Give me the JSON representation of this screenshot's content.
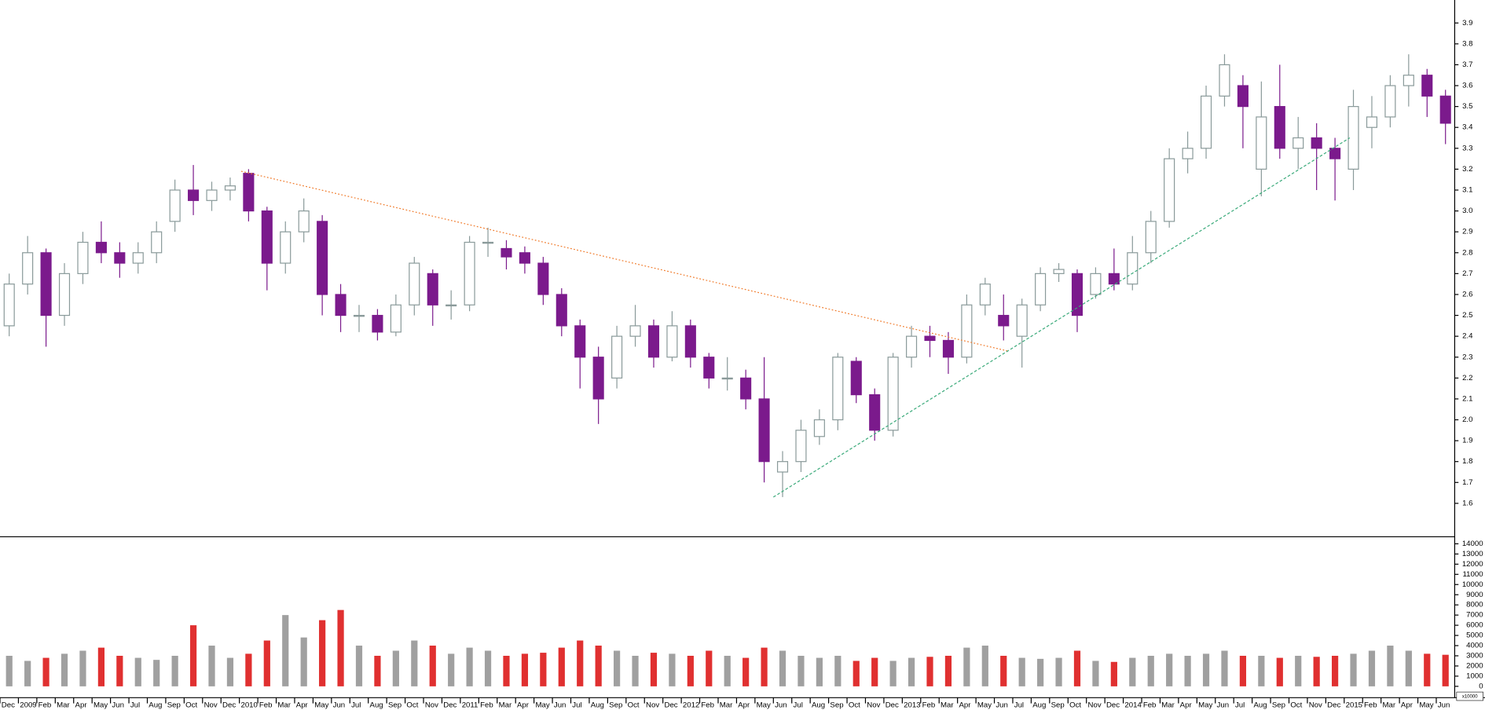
{
  "chart_data": [
    {
      "type": "candlestick",
      "categories": [
        "Dec",
        "2009",
        "Feb",
        "Mar",
        "Apr",
        "May",
        "Jun",
        "Jul",
        "Aug",
        "Sep",
        "Oct",
        "Nov",
        "Dec",
        "2010",
        "Feb",
        "Mar",
        "Apr",
        "May",
        "Jun",
        "Jul",
        "Aug",
        "Sep",
        "Oct",
        "Nov",
        "Dec",
        "2011",
        "Feb",
        "Mar",
        "Apr",
        "May",
        "Jun",
        "Jul",
        "Aug",
        "Sep",
        "Oct",
        "Nov",
        "Dec",
        "2012",
        "Feb",
        "Mar",
        "Apr",
        "May",
        "Jun",
        "Jul",
        "Aug",
        "Sep",
        "Oct",
        "Nov",
        "Dec",
        "2013",
        "Feb",
        "Mar",
        "Apr",
        "May",
        "Jun",
        "Jul",
        "Aug",
        "Sep",
        "Oct",
        "Nov",
        "Dec",
        "2014",
        "Feb",
        "Mar",
        "Apr",
        "May",
        "Jun",
        "Jul",
        "Aug",
        "Sep",
        "Oct",
        "Nov",
        "Dec",
        "2015",
        "Feb",
        "Mar",
        "Apr",
        "May",
        "Jun"
      ],
      "open": [
        2.45,
        2.65,
        2.8,
        2.5,
        2.7,
        2.85,
        2.8,
        2.75,
        2.8,
        2.95,
        3.1,
        3.05,
        3.1,
        3.18,
        3.0,
        2.75,
        2.9,
        2.95,
        2.6,
        2.5,
        2.5,
        2.42,
        2.55,
        2.7,
        2.55,
        2.55,
        2.85,
        2.82,
        2.8,
        2.75,
        2.6,
        2.45,
        2.3,
        2.2,
        2.4,
        2.45,
        2.3,
        2.45,
        2.3,
        2.2,
        2.2,
        2.1,
        1.75,
        1.8,
        1.92,
        2.0,
        2.28,
        2.12,
        1.95,
        2.3,
        2.4,
        2.38,
        2.3,
        2.55,
        2.5,
        2.4,
        2.55,
        2.7,
        2.7,
        2.6,
        2.7,
        2.65,
        2.8,
        2.95,
        3.25,
        3.3,
        3.55,
        3.6,
        3.2,
        3.5,
        3.3,
        3.35,
        3.3,
        3.2,
        3.4,
        3.45,
        3.6,
        3.65,
        3.55
      ],
      "high": [
        2.7,
        2.88,
        2.82,
        2.75,
        2.9,
        2.95,
        2.85,
        2.85,
        2.95,
        3.15,
        3.22,
        3.14,
        3.16,
        3.2,
        3.02,
        2.95,
        3.06,
        2.98,
        2.65,
        2.55,
        2.53,
        2.6,
        2.78,
        2.72,
        2.62,
        2.88,
        2.92,
        2.86,
        2.83,
        2.78,
        2.63,
        2.48,
        2.35,
        2.45,
        2.55,
        2.48,
        2.52,
        2.48,
        2.32,
        2.3,
        2.24,
        2.3,
        1.85,
        2.0,
        2.05,
        2.32,
        2.3,
        2.15,
        2.32,
        2.45,
        2.45,
        2.42,
        2.6,
        2.68,
        2.6,
        2.58,
        2.73,
        2.75,
        2.72,
        2.73,
        2.82,
        2.88,
        3.0,
        3.3,
        3.38,
        3.6,
        3.75,
        3.65,
        3.62,
        3.7,
        3.45,
        3.42,
        3.35,
        3.58,
        3.55,
        3.65,
        3.75,
        3.68,
        3.58
      ],
      "low": [
        2.4,
        2.6,
        2.35,
        2.45,
        2.65,
        2.75,
        2.68,
        2.7,
        2.75,
        2.9,
        2.98,
        3.0,
        3.05,
        2.95,
        2.62,
        2.7,
        2.85,
        2.5,
        2.42,
        2.42,
        2.38,
        2.4,
        2.5,
        2.45,
        2.48,
        2.52,
        2.78,
        2.72,
        2.7,
        2.55,
        2.4,
        2.15,
        1.98,
        2.15,
        2.35,
        2.25,
        2.28,
        2.25,
        2.15,
        2.14,
        2.05,
        1.7,
        1.63,
        1.75,
        1.88,
        1.95,
        2.08,
        1.9,
        1.92,
        2.25,
        2.3,
        2.22,
        2.27,
        2.5,
        2.38,
        2.25,
        2.52,
        2.66,
        2.42,
        2.58,
        2.62,
        2.62,
        2.75,
        2.92,
        3.18,
        3.25,
        3.5,
        3.3,
        3.07,
        3.25,
        3.2,
        3.1,
        3.05,
        3.1,
        3.3,
        3.4,
        3.5,
        3.45,
        3.32
      ],
      "close": [
        2.65,
        2.8,
        2.5,
        2.7,
        2.85,
        2.8,
        2.75,
        2.8,
        2.9,
        3.1,
        3.05,
        3.1,
        3.12,
        3.0,
        2.75,
        2.9,
        3.0,
        2.6,
        2.5,
        2.5,
        2.42,
        2.55,
        2.75,
        2.55,
        2.55,
        2.85,
        2.85,
        2.78,
        2.75,
        2.6,
        2.45,
        2.3,
        2.1,
        2.4,
        2.45,
        2.3,
        2.45,
        2.3,
        2.2,
        2.2,
        2.1,
        1.8,
        1.8,
        1.95,
        2.0,
        2.3,
        2.12,
        1.95,
        2.3,
        2.4,
        2.38,
        2.3,
        2.55,
        2.65,
        2.45,
        2.55,
        2.7,
        2.72,
        2.5,
        2.7,
        2.65,
        2.8,
        2.95,
        3.25,
        3.3,
        3.55,
        3.7,
        3.5,
        3.45,
        3.3,
        3.35,
        3.3,
        3.25,
        3.5,
        3.45,
        3.6,
        3.65,
        3.55,
        3.42
      ],
      "up_color": "#ffffff",
      "up_edge": "#8a9a9a",
      "down_color": "#7b1a8c",
      "ylim": [
        1.44,
        4.01
      ],
      "yticks": [
        1.6,
        1.7,
        1.8,
        1.9,
        {
          "value": 2,
          "label": "2.0"
        },
        2.1,
        2.2,
        2.3,
        2.4,
        2.5,
        2.6,
        2.7,
        2.8,
        2.9,
        {
          "value": 3,
          "label": "3.0"
        },
        3.1,
        3.2,
        3.3,
        3.4,
        3.5,
        3.6,
        3.7,
        3.8,
        3.9
      ],
      "trendlines": [
        {
          "color": "#f07a2a",
          "style": "dotted",
          "x": [
            12.6,
            54.2
          ],
          "y": [
            3.19,
            2.33
          ]
        },
        {
          "color": "#3aaa7a",
          "style": "dashed",
          "x": [
            41.5,
            72.8
          ],
          "y": [
            1.63,
            3.35
          ]
        }
      ]
    },
    {
      "type": "bar",
      "values": [
        3000,
        2500,
        2800,
        3200,
        3500,
        3800,
        3000,
        2800,
        2600,
        3000,
        6000,
        4000,
        2800,
        3200,
        4500,
        7000,
        4800,
        6500,
        7500,
        4000,
        3000,
        3500,
        4500,
        4000,
        3200,
        3800,
        3500,
        3000,
        3200,
        3300,
        3800,
        4500,
        4000,
        3500,
        3000,
        3300,
        3200,
        3000,
        3500,
        3000,
        2800,
        3800,
        3500,
        3000,
        2800,
        3000,
        2500,
        2800,
        2500,
        2800,
        2900,
        3000,
        3800,
        4000,
        3000,
        2800,
        2700,
        2800,
        3500,
        2500,
        2400,
        2800,
        3000,
        3200,
        3000,
        3200,
        3500,
        3000,
        3000,
        2800,
        3000,
        2900,
        3000,
        3200,
        3500,
        4000,
        3500,
        3200,
        3100
      ],
      "up_color": "#a0a0a0",
      "down_color": "#e03030",
      "ylim": [
        0,
        14600
      ],
      "yticks": [
        0,
        1000,
        2000,
        3000,
        4000,
        5000,
        6000,
        7000,
        8000,
        9000,
        10000,
        11000,
        12000,
        13000,
        14000
      ],
      "unit_label": "x10000"
    }
  ]
}
